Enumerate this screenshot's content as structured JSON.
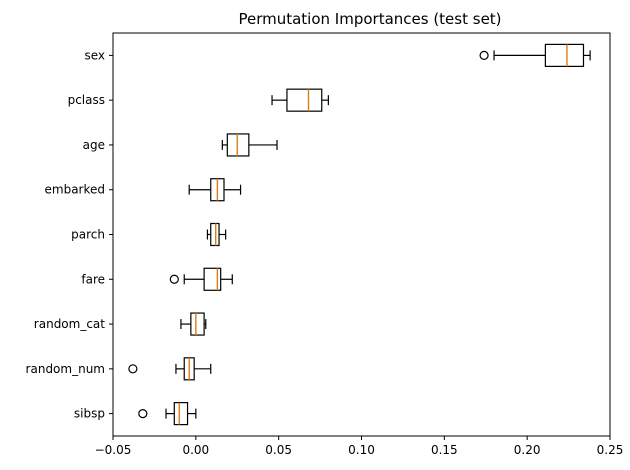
{
  "chart_data": {
    "type": "boxplot",
    "orientation": "horizontal",
    "title": "Permutation Importances (test set)",
    "xlabel": "",
    "ylabel": "",
    "xlim": [
      -0.05,
      0.25
    ],
    "xticks": [
      -0.05,
      0.0,
      0.05,
      0.1,
      0.15,
      0.2,
      0.25
    ],
    "xtick_labels": [
      "−0.05",
      "0.00",
      "0.05",
      "0.10",
      "0.15",
      "0.20",
      "0.25"
    ],
    "grid": false,
    "categories": [
      "sex",
      "pclass",
      "age",
      "embarked",
      "parch",
      "fare",
      "random_cat",
      "random_num",
      "sibsp"
    ],
    "boxes": [
      {
        "label": "sex",
        "whisker_low": 0.18,
        "q1": 0.211,
        "median": 0.224,
        "q3": 0.234,
        "whisker_high": 0.238,
        "fliers": [
          0.174
        ]
      },
      {
        "label": "pclass",
        "whisker_low": 0.046,
        "q1": 0.055,
        "median": 0.068,
        "q3": 0.076,
        "whisker_high": 0.08,
        "fliers": []
      },
      {
        "label": "age",
        "whisker_low": 0.016,
        "q1": 0.019,
        "median": 0.025,
        "q3": 0.032,
        "whisker_high": 0.049,
        "fliers": []
      },
      {
        "label": "embarked",
        "whisker_low": -0.004,
        "q1": 0.009,
        "median": 0.013,
        "q3": 0.017,
        "whisker_high": 0.027,
        "fliers": []
      },
      {
        "label": "parch",
        "whisker_low": 0.007,
        "q1": 0.009,
        "median": 0.012,
        "q3": 0.014,
        "whisker_high": 0.018,
        "fliers": []
      },
      {
        "label": "fare",
        "whisker_low": -0.007,
        "q1": 0.005,
        "median": 0.013,
        "q3": 0.015,
        "whisker_high": 0.022,
        "fliers": [
          -0.013
        ]
      },
      {
        "label": "random_cat",
        "whisker_low": -0.009,
        "q1": -0.003,
        "median": 0.0,
        "q3": 0.005,
        "whisker_high": 0.006,
        "fliers": []
      },
      {
        "label": "random_num",
        "whisker_low": -0.012,
        "q1": -0.007,
        "median": -0.004,
        "q3": -0.001,
        "whisker_high": 0.009,
        "fliers": [
          -0.038
        ]
      },
      {
        "label": "sibsp",
        "whisker_low": -0.018,
        "q1": -0.013,
        "median": -0.01,
        "q3": -0.005,
        "whisker_high": 0.0,
        "fliers": [
          -0.032
        ]
      }
    ],
    "colors": {
      "box": "#000000",
      "median": "#e07b1a"
    }
  }
}
